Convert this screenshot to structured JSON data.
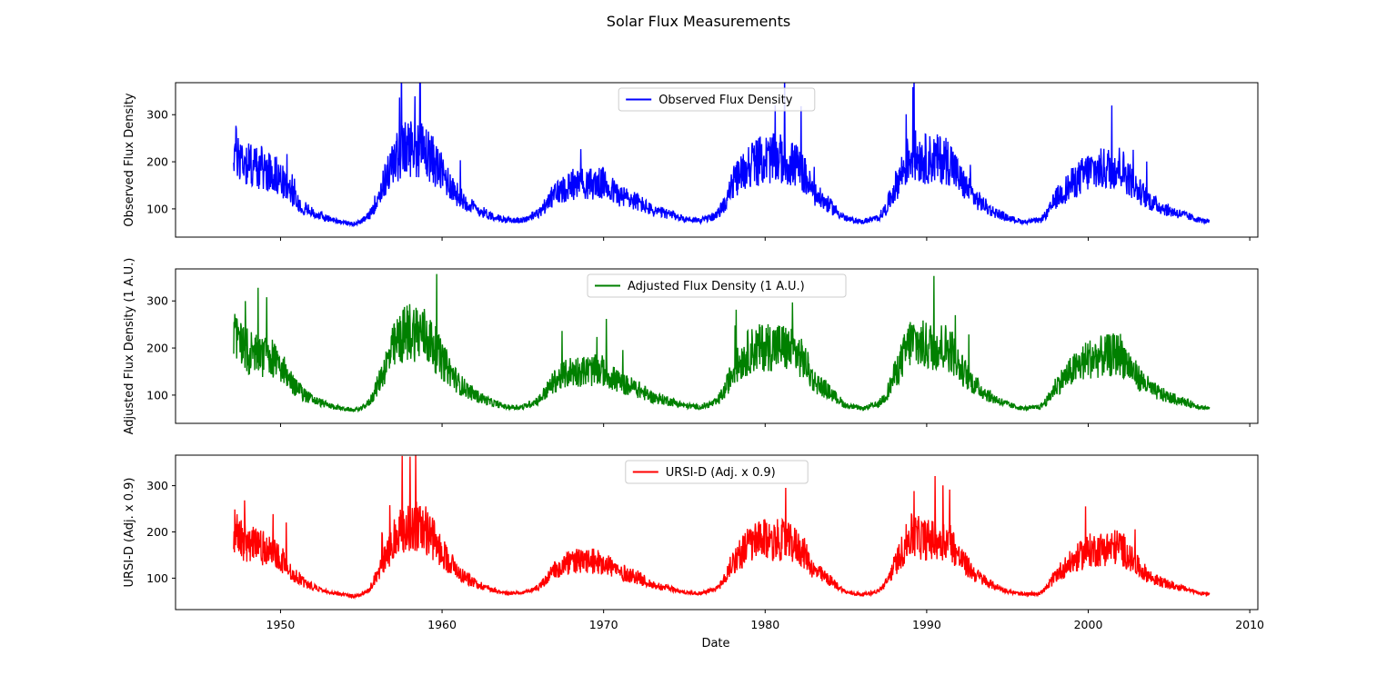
{
  "chart_data": {
    "type": "line",
    "title": "Solar Flux Measurements",
    "xlabel": "Date",
    "xlim": [
      1943.5,
      2010.5
    ],
    "xticks": [
      1950,
      1960,
      1970,
      1980,
      1990,
      2000,
      2010
    ],
    "x_range": [
      1947.1,
      2007.5
    ],
    "panels": [
      {
        "ylabel": "Observed Flux Density",
        "ylim": [
          40,
          368
        ],
        "yticks": [
          100,
          200,
          300
        ],
        "legend": {
          "label": "Observed Flux Density",
          "location": "upper center"
        },
        "series": {
          "name": "Observed Flux Density",
          "color": "#0000ff",
          "baseline_points": [
            [
              1947.1,
              220
            ],
            [
              1947.5,
              205
            ],
            [
              1948.0,
              190
            ],
            [
              1948.5,
              185
            ],
            [
              1949.0,
              180
            ],
            [
              1949.5,
              175
            ],
            [
              1950.0,
              160
            ],
            [
              1950.5,
              135
            ],
            [
              1951.0,
              115
            ],
            [
              1951.5,
              100
            ],
            [
              1952.0,
              90
            ],
            [
              1953.0,
              78
            ],
            [
              1954.0,
              70
            ],
            [
              1954.5,
              68
            ],
            [
              1955.0,
              72
            ],
            [
              1955.5,
              85
            ],
            [
              1956.0,
              120
            ],
            [
              1956.5,
              160
            ],
            [
              1957.0,
              195
            ],
            [
              1957.5,
              215
            ],
            [
              1958.0,
              225
            ],
            [
              1958.5,
              220
            ],
            [
              1959.0,
              215
            ],
            [
              1959.5,
              195
            ],
            [
              1960.0,
              170
            ],
            [
              1960.5,
              150
            ],
            [
              1961.0,
              125
            ],
            [
              1962.0,
              100
            ],
            [
              1963.0,
              85
            ],
            [
              1964.0,
              75
            ],
            [
              1965.0,
              75
            ],
            [
              1966.0,
              90
            ],
            [
              1967.0,
              130
            ],
            [
              1968.0,
              150
            ],
            [
              1969.0,
              150
            ],
            [
              1970.0,
              150
            ],
            [
              1971.0,
              125
            ],
            [
              1972.0,
              115
            ],
            [
              1973.0,
              95
            ],
            [
              1974.0,
              88
            ],
            [
              1975.0,
              78
            ],
            [
              1976.0,
              75
            ],
            [
              1977.0,
              85
            ],
            [
              1977.5,
              110
            ],
            [
              1978.0,
              150
            ],
            [
              1979.0,
              190
            ],
            [
              1980.0,
              200
            ],
            [
              1981.0,
              200
            ],
            [
              1982.0,
              185
            ],
            [
              1982.5,
              165
            ],
            [
              1983.0,
              130
            ],
            [
              1984.0,
              105
            ],
            [
              1985.0,
              78
            ],
            [
              1986.0,
              72
            ],
            [
              1987.0,
              80
            ],
            [
              1987.5,
              100
            ],
            [
              1988.0,
              140
            ],
            [
              1988.5,
              175
            ],
            [
              1989.0,
              210
            ],
            [
              1990.0,
              200
            ],
            [
              1991.0,
              200
            ],
            [
              1991.5,
              195
            ],
            [
              1992.0,
              160
            ],
            [
              1993.0,
              120
            ],
            [
              1994.0,
              95
            ],
            [
              1995.0,
              80
            ],
            [
              1996.0,
              72
            ],
            [
              1997.0,
              75
            ],
            [
              1997.5,
              90
            ],
            [
              1998.0,
              120
            ],
            [
              1999.0,
              150
            ],
            [
              2000.0,
              175
            ],
            [
              2001.0,
              180
            ],
            [
              2002.0,
              185
            ],
            [
              2003.0,
              140
            ],
            [
              2004.0,
              110
            ],
            [
              2005.0,
              95
            ],
            [
              2006.0,
              85
            ],
            [
              2007.0,
              75
            ],
            [
              2007.5,
              72
            ]
          ]
        }
      },
      {
        "ylabel": "Adjusted Flux Density (1 A.U.)",
        "ylim": [
          40,
          368
        ],
        "yticks": [
          100,
          200,
          300
        ],
        "legend": {
          "label": "Adjusted Flux Density (1 A.U.)",
          "location": "upper center"
        },
        "series": {
          "name": "Adjusted Flux Density (1 A.U.)",
          "color": "#008000",
          "baseline_points": [
            [
              1947.1,
              218
            ],
            [
              1947.5,
              203
            ],
            [
              1948.0,
              188
            ],
            [
              1948.5,
              183
            ],
            [
              1949.0,
              178
            ],
            [
              1949.5,
              173
            ],
            [
              1950.0,
              158
            ],
            [
              1950.5,
              133
            ],
            [
              1951.0,
              113
            ],
            [
              1951.5,
              99
            ],
            [
              1952.0,
              89
            ],
            [
              1953.0,
              77
            ],
            [
              1954.0,
              70
            ],
            [
              1954.5,
              68
            ],
            [
              1955.0,
              71
            ],
            [
              1955.5,
              84
            ],
            [
              1956.0,
              118
            ],
            [
              1956.5,
              158
            ],
            [
              1957.0,
              195
            ],
            [
              1957.5,
              218
            ],
            [
              1958.0,
              230
            ],
            [
              1958.5,
              228
            ],
            [
              1959.0,
              220
            ],
            [
              1959.5,
              197
            ],
            [
              1960.0,
              168
            ],
            [
              1960.5,
              148
            ],
            [
              1961.0,
              123
            ],
            [
              1962.0,
              99
            ],
            [
              1963.0,
              84
            ],
            [
              1964.0,
              74
            ],
            [
              1965.0,
              74
            ],
            [
              1966.0,
              89
            ],
            [
              1967.0,
              128
            ],
            [
              1968.0,
              148
            ],
            [
              1969.0,
              148
            ],
            [
              1970.0,
              148
            ],
            [
              1971.0,
              123
            ],
            [
              1972.0,
              113
            ],
            [
              1973.0,
              94
            ],
            [
              1974.0,
              87
            ],
            [
              1975.0,
              77
            ],
            [
              1976.0,
              74
            ],
            [
              1977.0,
              84
            ],
            [
              1977.5,
              108
            ],
            [
              1978.0,
              148
            ],
            [
              1979.0,
              188
            ],
            [
              1980.0,
              198
            ],
            [
              1981.0,
              198
            ],
            [
              1982.0,
              183
            ],
            [
              1982.5,
              163
            ],
            [
              1983.0,
              128
            ],
            [
              1984.0,
              104
            ],
            [
              1985.0,
              77
            ],
            [
              1986.0,
              71
            ],
            [
              1987.0,
              79
            ],
            [
              1987.5,
              99
            ],
            [
              1988.0,
              138
            ],
            [
              1988.5,
              173
            ],
            [
              1989.0,
              208
            ],
            [
              1990.0,
              198
            ],
            [
              1991.0,
              198
            ],
            [
              1991.5,
              193
            ],
            [
              1992.0,
              158
            ],
            [
              1993.0,
              118
            ],
            [
              1994.0,
              94
            ],
            [
              1995.0,
              79
            ],
            [
              1996.0,
              71
            ],
            [
              1997.0,
              74
            ],
            [
              1997.5,
              89
            ],
            [
              1998.0,
              118
            ],
            [
              1999.0,
              148
            ],
            [
              2000.0,
              173
            ],
            [
              2001.0,
              178
            ],
            [
              2002.0,
              183
            ],
            [
              2003.0,
              138
            ],
            [
              2004.0,
              108
            ],
            [
              2005.0,
              94
            ],
            [
              2006.0,
              84
            ],
            [
              2007.0,
              74
            ],
            [
              2007.5,
              71
            ]
          ]
        }
      },
      {
        "ylabel": "URSI-D (Adj. x 0.9)",
        "ylim": [
          32,
          366
        ],
        "yticks": [
          100,
          200,
          300
        ],
        "legend": {
          "label": "URSI-D (Adj. x 0.9)",
          "location": "upper center"
        },
        "series": {
          "name": "URSI-D (Adj. x 0.9)",
          "color": "#ff0000",
          "baseline_points": [
            [
              1947.1,
              196
            ],
            [
              1947.5,
              183
            ],
            [
              1948.0,
              169
            ],
            [
              1948.5,
              165
            ],
            [
              1949.0,
              160
            ],
            [
              1949.5,
              156
            ],
            [
              1950.0,
              142
            ],
            [
              1950.5,
              120
            ],
            [
              1951.0,
              102
            ],
            [
              1951.5,
              89
            ],
            [
              1952.0,
              80
            ],
            [
              1953.0,
              69
            ],
            [
              1954.0,
              63
            ],
            [
              1954.5,
              61
            ],
            [
              1955.0,
              64
            ],
            [
              1955.5,
              76
            ],
            [
              1956.0,
              106
            ],
            [
              1956.5,
              142
            ],
            [
              1957.0,
              176
            ],
            [
              1957.5,
              196
            ],
            [
              1958.0,
              207
            ],
            [
              1958.5,
              205
            ],
            [
              1959.0,
              198
            ],
            [
              1959.5,
              177
            ],
            [
              1960.0,
              151
            ],
            [
              1960.5,
              133
            ],
            [
              1961.0,
              111
            ],
            [
              1962.0,
              89
            ],
            [
              1963.0,
              76
            ],
            [
              1964.0,
              67
            ],
            [
              1965.0,
              67
            ],
            [
              1966.0,
              80
            ],
            [
              1967.0,
              115
            ],
            [
              1968.0,
              133
            ],
            [
              1969.0,
              133
            ],
            [
              1970.0,
              133
            ],
            [
              1971.0,
              111
            ],
            [
              1972.0,
              102
            ],
            [
              1973.0,
              85
            ],
            [
              1974.0,
              78
            ],
            [
              1975.0,
              69
            ],
            [
              1976.0,
              67
            ],
            [
              1977.0,
              76
            ],
            [
              1977.5,
              97
            ],
            [
              1978.0,
              133
            ],
            [
              1979.0,
              169
            ],
            [
              1980.0,
              178
            ],
            [
              1981.0,
              178
            ],
            [
              1982.0,
              165
            ],
            [
              1982.5,
              147
            ],
            [
              1983.0,
              115
            ],
            [
              1984.0,
              94
            ],
            [
              1985.0,
              69
            ],
            [
              1986.0,
              64
            ],
            [
              1987.0,
              71
            ],
            [
              1987.5,
              89
            ],
            [
              1988.0,
              124
            ],
            [
              1988.5,
              156
            ],
            [
              1989.0,
              187
            ],
            [
              1990.0,
              178
            ],
            [
              1991.0,
              178
            ],
            [
              1991.5,
              174
            ],
            [
              1992.0,
              142
            ],
            [
              1993.0,
              106
            ],
            [
              1994.0,
              85
            ],
            [
              1995.0,
              71
            ],
            [
              1996.0,
              64
            ],
            [
              1997.0,
              67
            ],
            [
              1997.5,
              80
            ],
            [
              1998.0,
              106
            ],
            [
              1999.0,
              133
            ],
            [
              2000.0,
              156
            ],
            [
              2001.0,
              160
            ],
            [
              2002.0,
              165
            ],
            [
              2003.0,
              124
            ],
            [
              2004.0,
              97
            ],
            [
              2005.0,
              85
            ],
            [
              2006.0,
              76
            ],
            [
              2007.0,
              67
            ],
            [
              2007.5,
              64
            ]
          ]
        }
      }
    ]
  }
}
